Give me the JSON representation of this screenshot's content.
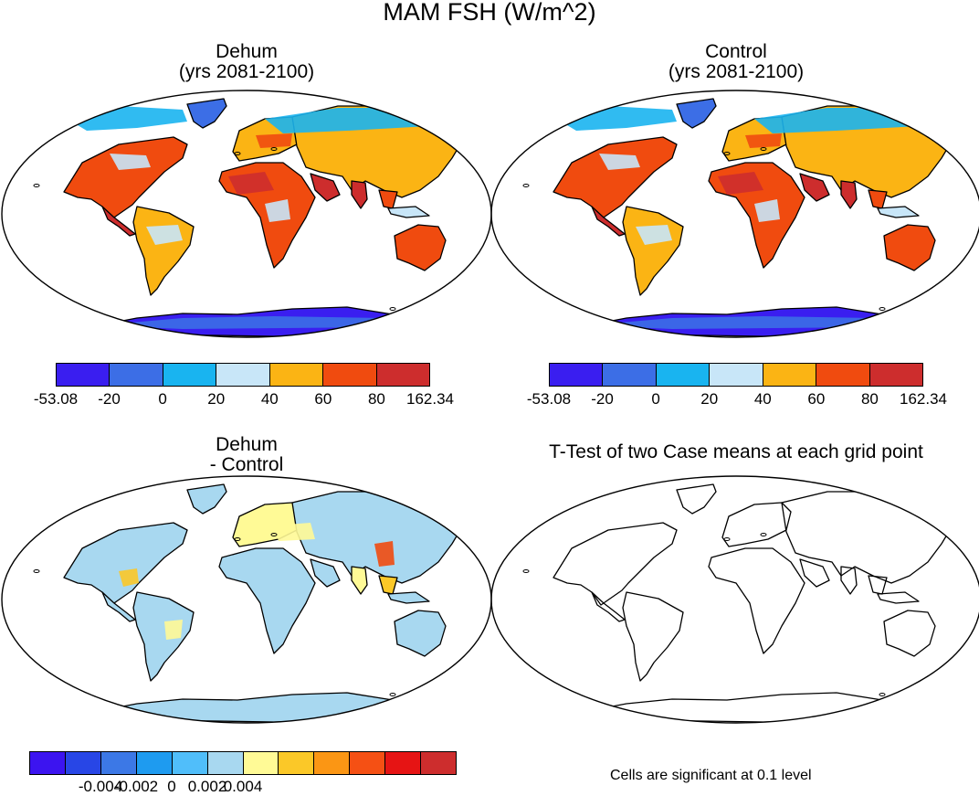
{
  "figure_title": "MAM FSH (W/m^2)",
  "panels": [
    {
      "name": "dehum",
      "title_line1": "Dehum",
      "title_line2": "(yrs 2081-2100)"
    },
    {
      "name": "control",
      "title_line1": "Control",
      "title_line2": "(yrs 2081-2100)"
    },
    {
      "name": "difference",
      "title_line1": "Dehum",
      "title_line2": "- Control"
    },
    {
      "name": "ttest",
      "title_line1": "T-Test of two Case means at each grid point"
    }
  ],
  "colorbar_main": {
    "colors": [
      "#3a1ef0",
      "#3c6ee6",
      "#19b4f0",
      "#c8e6f8",
      "#fbb414",
      "#f04b0f",
      "#cd2d2d"
    ],
    "labels": [
      "-53.08",
      "-20",
      "0",
      "20",
      "40",
      "60",
      "80",
      "162.34"
    ]
  },
  "colorbar_diff": {
    "colors": [
      "#3c14f0",
      "#2846e6",
      "#3c78e6",
      "#1e9bf0",
      "#50befa",
      "#a8d8f0",
      "#fffa96",
      "#fbc828",
      "#fb9614",
      "#f55014",
      "#e61414",
      "#cd2d2d"
    ],
    "labels": [
      "-0.004",
      "-0.002",
      "0",
      "0.002",
      "0.004"
    ]
  },
  "ttest_note": "Cells are significant at 0.1 level"
}
